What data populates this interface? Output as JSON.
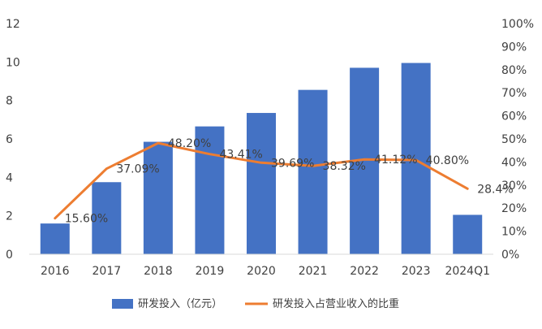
{
  "chart_data": {
    "type": "bar",
    "categories": [
      "2016",
      "2017",
      "2018",
      "2019",
      "2020",
      "2021",
      "2022",
      "2023",
      "2024Q1"
    ],
    "series": [
      {
        "name": "研发投入（亿元）",
        "kind": "bar",
        "axis": "left",
        "color": "#4472C4",
        "values": [
          1.6,
          3.75,
          5.85,
          6.65,
          7.35,
          8.55,
          9.7,
          9.95,
          2.05
        ]
      },
      {
        "name": "研发投入占营业收入的比重",
        "kind": "line",
        "axis": "right",
        "color": "#ED7D31",
        "values": [
          15.6,
          37.09,
          48.2,
          43.41,
          39.69,
          38.32,
          41.12,
          40.8,
          28.4
        ],
        "labels": [
          "15.60%",
          "37.09%",
          "48.20%",
          "43.41%",
          "39.69%",
          "38.32%",
          "41.12%",
          "40.80%",
          "28.4%"
        ]
      }
    ],
    "ylim_left": [
      0,
      12
    ],
    "yticks_left": [
      "0",
      "2",
      "4",
      "6",
      "8",
      "10",
      "12"
    ],
    "ylim_right": [
      0,
      100
    ],
    "yticks_right": [
      "0%",
      "10%",
      "20%",
      "30%",
      "40%",
      "50%",
      "60%",
      "70%",
      "80%",
      "90%",
      "100%"
    ],
    "grid": false,
    "legend_position": "bottom"
  }
}
